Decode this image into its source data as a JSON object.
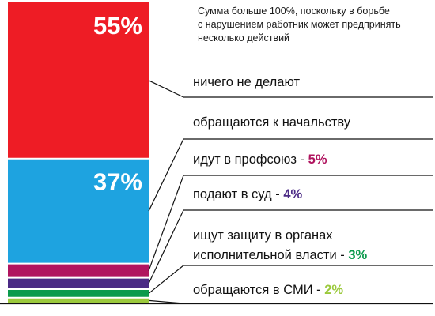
{
  "note": {
    "lines": [
      "Сумма больше 100%, поскольку в борьбе",
      "с нарушением работник может предпринять",
      "несколько действий"
    ]
  },
  "chart_data": {
    "type": "bar",
    "stacked": true,
    "unit": "%",
    "series": [
      {
        "name": "ничего не делают",
        "value": 55,
        "color": "#ee1c25",
        "value_label": "55%",
        "label_parts": [
          "ничего не делают"
        ],
        "value_in_label": ""
      },
      {
        "name": "обращаются к начальству",
        "value": 37,
        "color": "#1ea3e0",
        "value_label": "37%",
        "label_parts": [
          "обращаются к начальству"
        ],
        "value_in_label": ""
      },
      {
        "name": "идут в профсоюз",
        "value": 5,
        "color": "#b0145f",
        "value_label": "",
        "label_parts": [
          "идут в профсоюз - "
        ],
        "value_in_label": "5%"
      },
      {
        "name": "подают в суд",
        "value": 4,
        "color": "#4b2a85",
        "value_label": "",
        "label_parts": [
          "подают в суд - "
        ],
        "value_in_label": "4%"
      },
      {
        "name": "ищут защиту в органах исполнительной власти",
        "value": 3,
        "color": "#0a9a4c",
        "value_label": "",
        "label_parts": [
          "ищут защиту в органах",
          "исполнительной власти - "
        ],
        "value_in_label": "3%"
      },
      {
        "name": "обращаются в СМИ",
        "value": 2,
        "color": "#9bc93c",
        "value_label": "",
        "label_parts": [
          "обращаются в СМИ - "
        ],
        "value_in_label": "2%"
      }
    ]
  }
}
